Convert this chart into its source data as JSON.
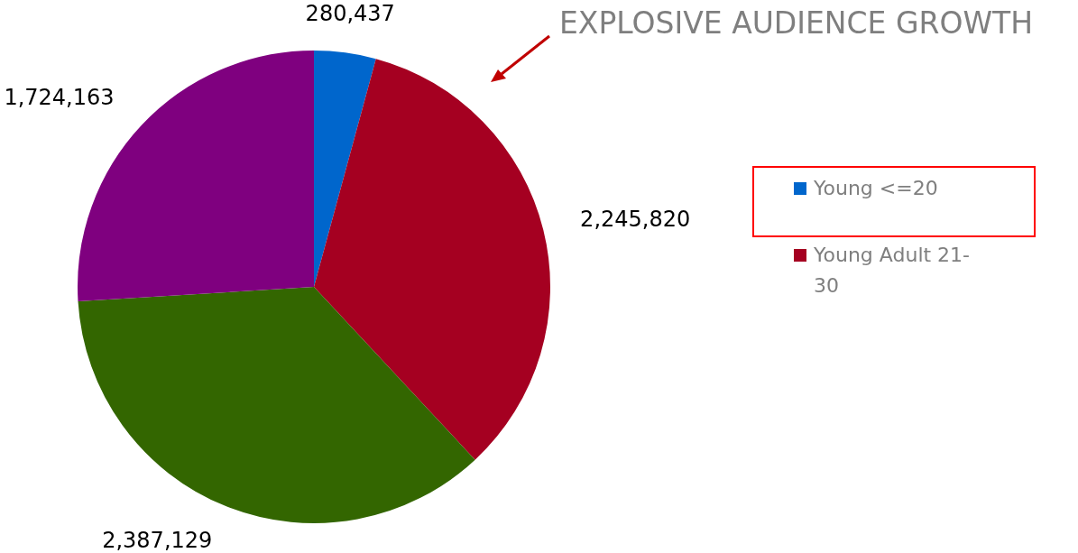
{
  "chart_data": {
    "type": "pie",
    "title": "EXPLOSIVE AUDIENCE GROWTH",
    "categories": [
      "Young <=20",
      "Young Adult 21-30",
      null,
      null
    ],
    "values": [
      280437,
      2245820,
      2387129,
      1724163
    ],
    "colors": [
      "#0066cc",
      "#a50021",
      "#336600",
      "#7f007f"
    ],
    "value_labels": [
      "280,437",
      "2,245,820",
      "2,387,129",
      "1,724,163"
    ],
    "legend": "right"
  }
}
